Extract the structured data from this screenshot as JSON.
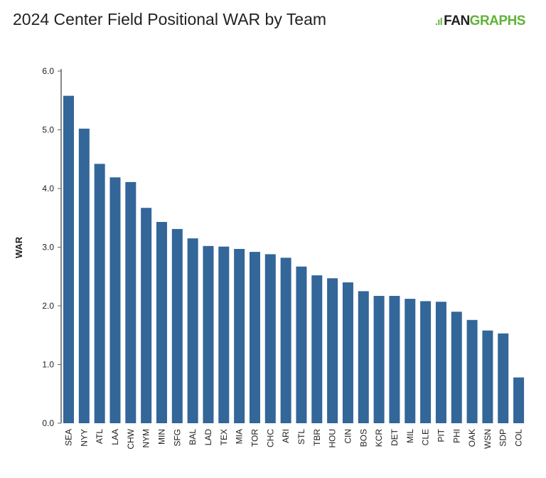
{
  "header": {
    "title": "2024 Center Field Positional WAR by Team",
    "logo_text": "FANGRAPHS"
  },
  "chart_data": {
    "type": "bar",
    "title": "2024 Center Field Positional WAR by Team",
    "xlabel": "",
    "ylabel": "WAR",
    "ylim": [
      0,
      6
    ],
    "yticks": [
      "0.0",
      "1.0",
      "2.0",
      "3.0",
      "4.0",
      "5.0",
      "6.0"
    ],
    "grid": false,
    "bar_color": "#336699",
    "categories": [
      "SEA",
      "NYY",
      "ATL",
      "LAA",
      "CHW",
      "NYM",
      "MIN",
      "SFG",
      "BAL",
      "LAD",
      "TEX",
      "MIA",
      "TOR",
      "CHC",
      "ARI",
      "STL",
      "TBR",
      "HOU",
      "CIN",
      "BOS",
      "KCR",
      "DET",
      "MIL",
      "CLE",
      "PIT",
      "PHI",
      "OAK",
      "WSN",
      "SDP",
      "COL"
    ],
    "values": [
      5.58,
      5.02,
      4.42,
      4.19,
      4.11,
      3.67,
      3.43,
      3.31,
      3.15,
      3.02,
      3.01,
      2.97,
      2.92,
      2.88,
      2.82,
      2.67,
      2.52,
      2.47,
      2.4,
      2.25,
      2.17,
      2.17,
      2.12,
      2.08,
      2.07,
      1.9,
      1.76,
      1.58,
      1.53,
      0.78
    ]
  }
}
